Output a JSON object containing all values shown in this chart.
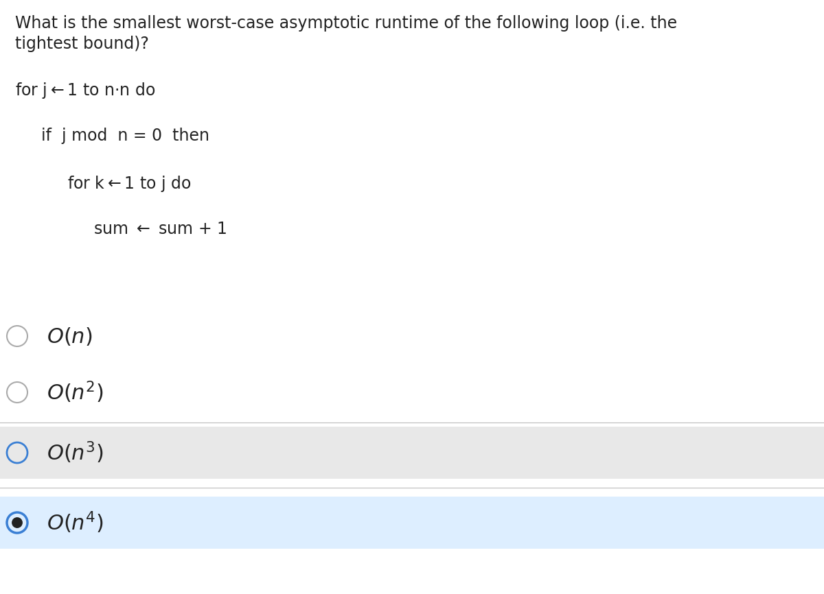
{
  "title_line1": "What is the smallest worst-case asymptotic runtime of the following loop (i.e. the",
  "title_line2": "tightest bound)?",
  "code_lines": [
    {
      "text": "for j←1 to n·n do",
      "indent": 0
    },
    {
      "text": "if  j mod  n = 0  then",
      "indent": 1
    },
    {
      "text": "for k←1 to j do",
      "indent": 2
    },
    {
      "text": "sum ← sum + 1",
      "indent": 3
    }
  ],
  "options": [
    {
      "math": "$O(n)$",
      "selected": false,
      "bg": null
    },
    {
      "math": "$O(n^2)$",
      "selected": false,
      "bg": null
    },
    {
      "math": "$O(n^3)$",
      "selected": false,
      "bg": "#e8e8e8"
    },
    {
      "math": "$O(n^4)$",
      "selected": true,
      "bg": "#ddeeff"
    }
  ],
  "background_color": "#ffffff",
  "title_fontsize": 17,
  "code_fontsize": 17,
  "option_fontsize": 22,
  "radio_gray": "#aaaaaa",
  "radio_blue": "#3a7fd4",
  "text_color": "#222222",
  "fig_width": 12.0,
  "fig_height": 8.66,
  "dpi": 100
}
